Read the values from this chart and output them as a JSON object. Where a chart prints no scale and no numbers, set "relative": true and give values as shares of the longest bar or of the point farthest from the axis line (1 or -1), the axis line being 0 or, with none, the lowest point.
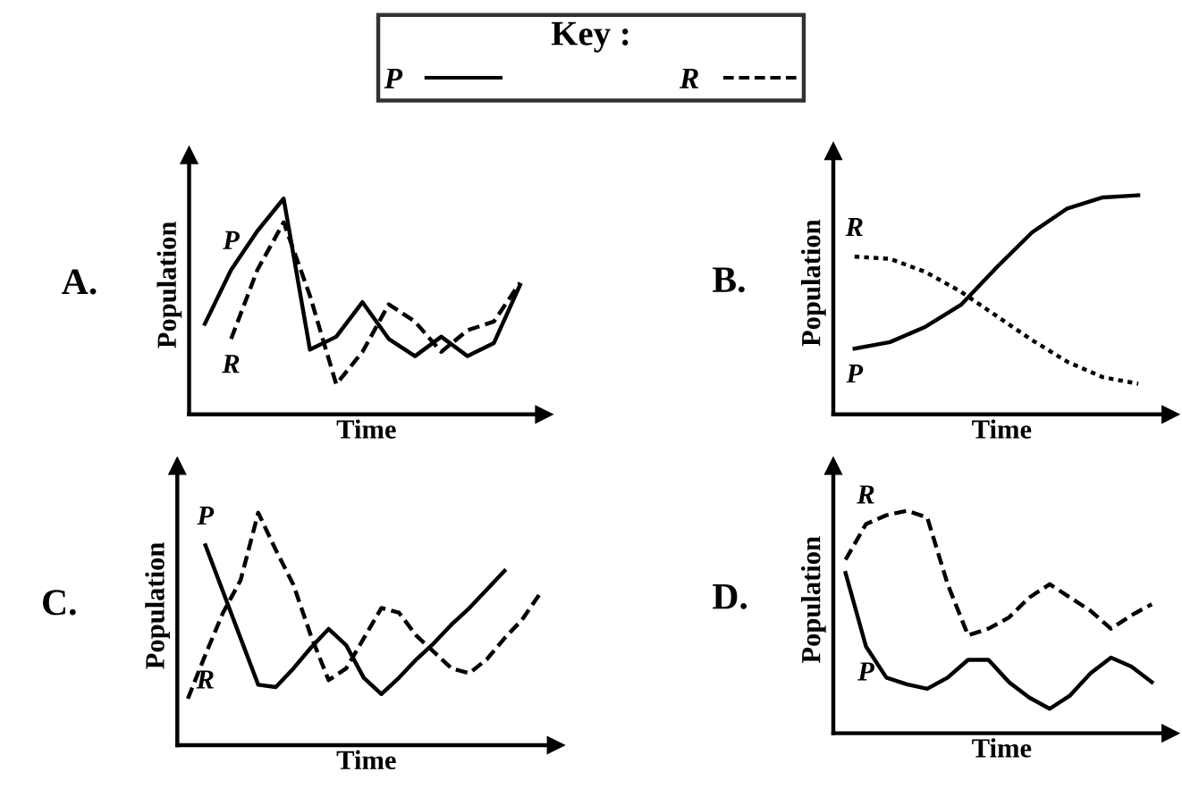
{
  "chart_data": [
    {
      "type": "line",
      "title": "A.",
      "xlabel": "Time",
      "ylabel": "Population",
      "relative": true,
      "legend": "top",
      "legend_title": "Key :",
      "categories": [
        null,
        null,
        null,
        null,
        null,
        null,
        null,
        null,
        null,
        null,
        null,
        null,
        null
      ],
      "series": [
        {
          "name": "P",
          "color": "#000000",
          "line_style": "solid",
          "values": [
            0.42,
            0.67,
            0.85,
            1.0,
            0.3,
            0.36,
            0.52,
            0.35,
            0.27,
            0.36,
            0.27,
            0.33,
            0.6
          ]
        },
        {
          "name": "R",
          "color": "#000000",
          "line_style": "dashed",
          "values": [
            null,
            0.35,
            0.67,
            0.89,
            0.55,
            0.14,
            0.29,
            0.51,
            0.43,
            0.29,
            0.39,
            0.43,
            0.61
          ]
        }
      ]
    },
    {
      "type": "line",
      "title": "B.",
      "xlabel": "Time",
      "ylabel": "Population",
      "relative": true,
      "categories": [
        null,
        null,
        null,
        null,
        null,
        null,
        null,
        null,
        null
      ],
      "series": [
        {
          "name": "P",
          "color": "#000000",
          "line_style": "solid",
          "values": [
            0.3,
            0.33,
            0.4,
            0.5,
            0.67,
            0.83,
            0.94,
            0.99,
            1.0
          ]
        },
        {
          "name": "R",
          "color": "#000000",
          "line_style": "dotted",
          "values": [
            0.72,
            0.71,
            0.65,
            0.56,
            0.45,
            0.34,
            0.24,
            0.17,
            0.14
          ]
        }
      ]
    },
    {
      "type": "line",
      "title": "C.",
      "xlabel": "Time",
      "ylabel": "Population",
      "relative": true,
      "categories": [
        null,
        null,
        null,
        null,
        null,
        null,
        null,
        null,
        null,
        null,
        null,
        null,
        null,
        null,
        null,
        null,
        null,
        null,
        null,
        null,
        null
      ],
      "series": [
        {
          "name": "P",
          "color": "#000000",
          "line_style": "solid",
          "values": [
            null,
            0.86,
            0.66,
            0.46,
            0.26,
            0.25,
            0.33,
            0.42,
            0.5,
            0.43,
            0.29,
            0.22,
            0.29,
            0.37,
            0.44,
            0.52,
            0.59,
            0.67,
            0.75,
            null,
            null
          ]
        },
        {
          "name": "R",
          "color": "#000000",
          "line_style": "dashed",
          "values": [
            0.2,
            0.39,
            0.57,
            0.71,
            1.0,
            0.84,
            0.69,
            0.47,
            0.28,
            0.33,
            0.46,
            0.59,
            0.57,
            0.47,
            0.4,
            0.33,
            0.31,
            0.37,
            0.46,
            0.54,
            0.65
          ]
        }
      ]
    },
    {
      "type": "line",
      "title": "D.",
      "xlabel": "Time",
      "ylabel": "Population",
      "relative": true,
      "categories": [
        null,
        null,
        null,
        null,
        null,
        null,
        null,
        null,
        null,
        null,
        null,
        null,
        null,
        null,
        null,
        null
      ],
      "series": [
        {
          "name": "P",
          "color": "#000000",
          "line_style": "solid",
          "values": [
            0.72,
            0.39,
            0.25,
            0.22,
            0.2,
            0.25,
            0.33,
            0.33,
            0.23,
            0.16,
            0.11,
            0.17,
            0.27,
            0.34,
            0.3,
            0.23
          ]
        },
        {
          "name": "R",
          "color": "#000000",
          "line_style": "dashed",
          "values": [
            0.78,
            0.94,
            0.98,
            1.0,
            0.97,
            0.67,
            0.44,
            0.47,
            0.52,
            0.61,
            0.67,
            0.61,
            0.55,
            0.47,
            0.53,
            0.58
          ]
        }
      ]
    }
  ]
}
